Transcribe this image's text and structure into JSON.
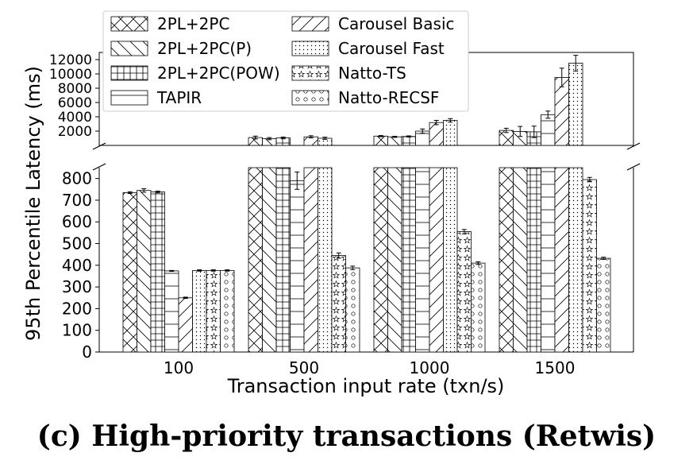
{
  "caption": "(c) High-priority transactions (Retwis)",
  "chart_data": {
    "type": "bar",
    "title": "",
    "xlabel": "Transaction input rate (txn/s)",
    "ylabel": "95th Percentile Latency (ms)",
    "categories": [
      "100",
      "500",
      "1000",
      "1500"
    ],
    "broken_axis": true,
    "ylim_lower": [
      0,
      850
    ],
    "ylim_upper": [
      0,
      13000
    ],
    "yticks_lower": [
      "0",
      "100",
      "200",
      "300",
      "400",
      "500",
      "600",
      "700",
      "800"
    ],
    "yticks_upper": [
      "2000",
      "4000",
      "6000",
      "8000",
      "10000",
      "12000"
    ],
    "legend_position": "top-left",
    "legend_columns": 2,
    "series": [
      {
        "name": "2PL+2PC",
        "pattern": "crosshatch",
        "values": [
          735,
          1100,
          1300,
          2100
        ]
      },
      {
        "name": "2PL+2PC(P)",
        "pattern": "backslash",
        "values": [
          745,
          950,
          1200,
          1950
        ]
      },
      {
        "name": "2PL+2PC(POW)",
        "pattern": "grid",
        "values": [
          738,
          1050,
          1250,
          1900
        ]
      },
      {
        "name": "TAPIR",
        "pattern": "horizontal",
        "values": [
          374,
          790,
          2000,
          4300
        ]
      },
      {
        "name": "Carousel Basic",
        "pattern": "slash",
        "values": [
          250,
          1200,
          3200,
          9500
        ]
      },
      {
        "name": "Carousel Fast",
        "pattern": "dots",
        "values": [
          376,
          1000,
          3500,
          11500
        ]
      },
      {
        "name": "Natto-TS",
        "pattern": "stars",
        "values": [
          376,
          445,
          555,
          795
        ]
      },
      {
        "name": "Natto-RECSF",
        "pattern": "circles",
        "values": [
          376,
          388,
          410,
          432
        ]
      }
    ],
    "errors": [
      [
        4,
        200,
        80,
        300
      ],
      [
        8,
        150,
        80,
        700
      ],
      [
        4,
        120,
        80,
        800
      ],
      [
        2,
        40,
        300,
        500
      ],
      [
        3,
        150,
        300,
        1300
      ],
      [
        3,
        150,
        250,
        1100
      ],
      [
        3,
        12,
        10,
        10
      ],
      [
        3,
        8,
        6,
        5
      ]
    ]
  }
}
